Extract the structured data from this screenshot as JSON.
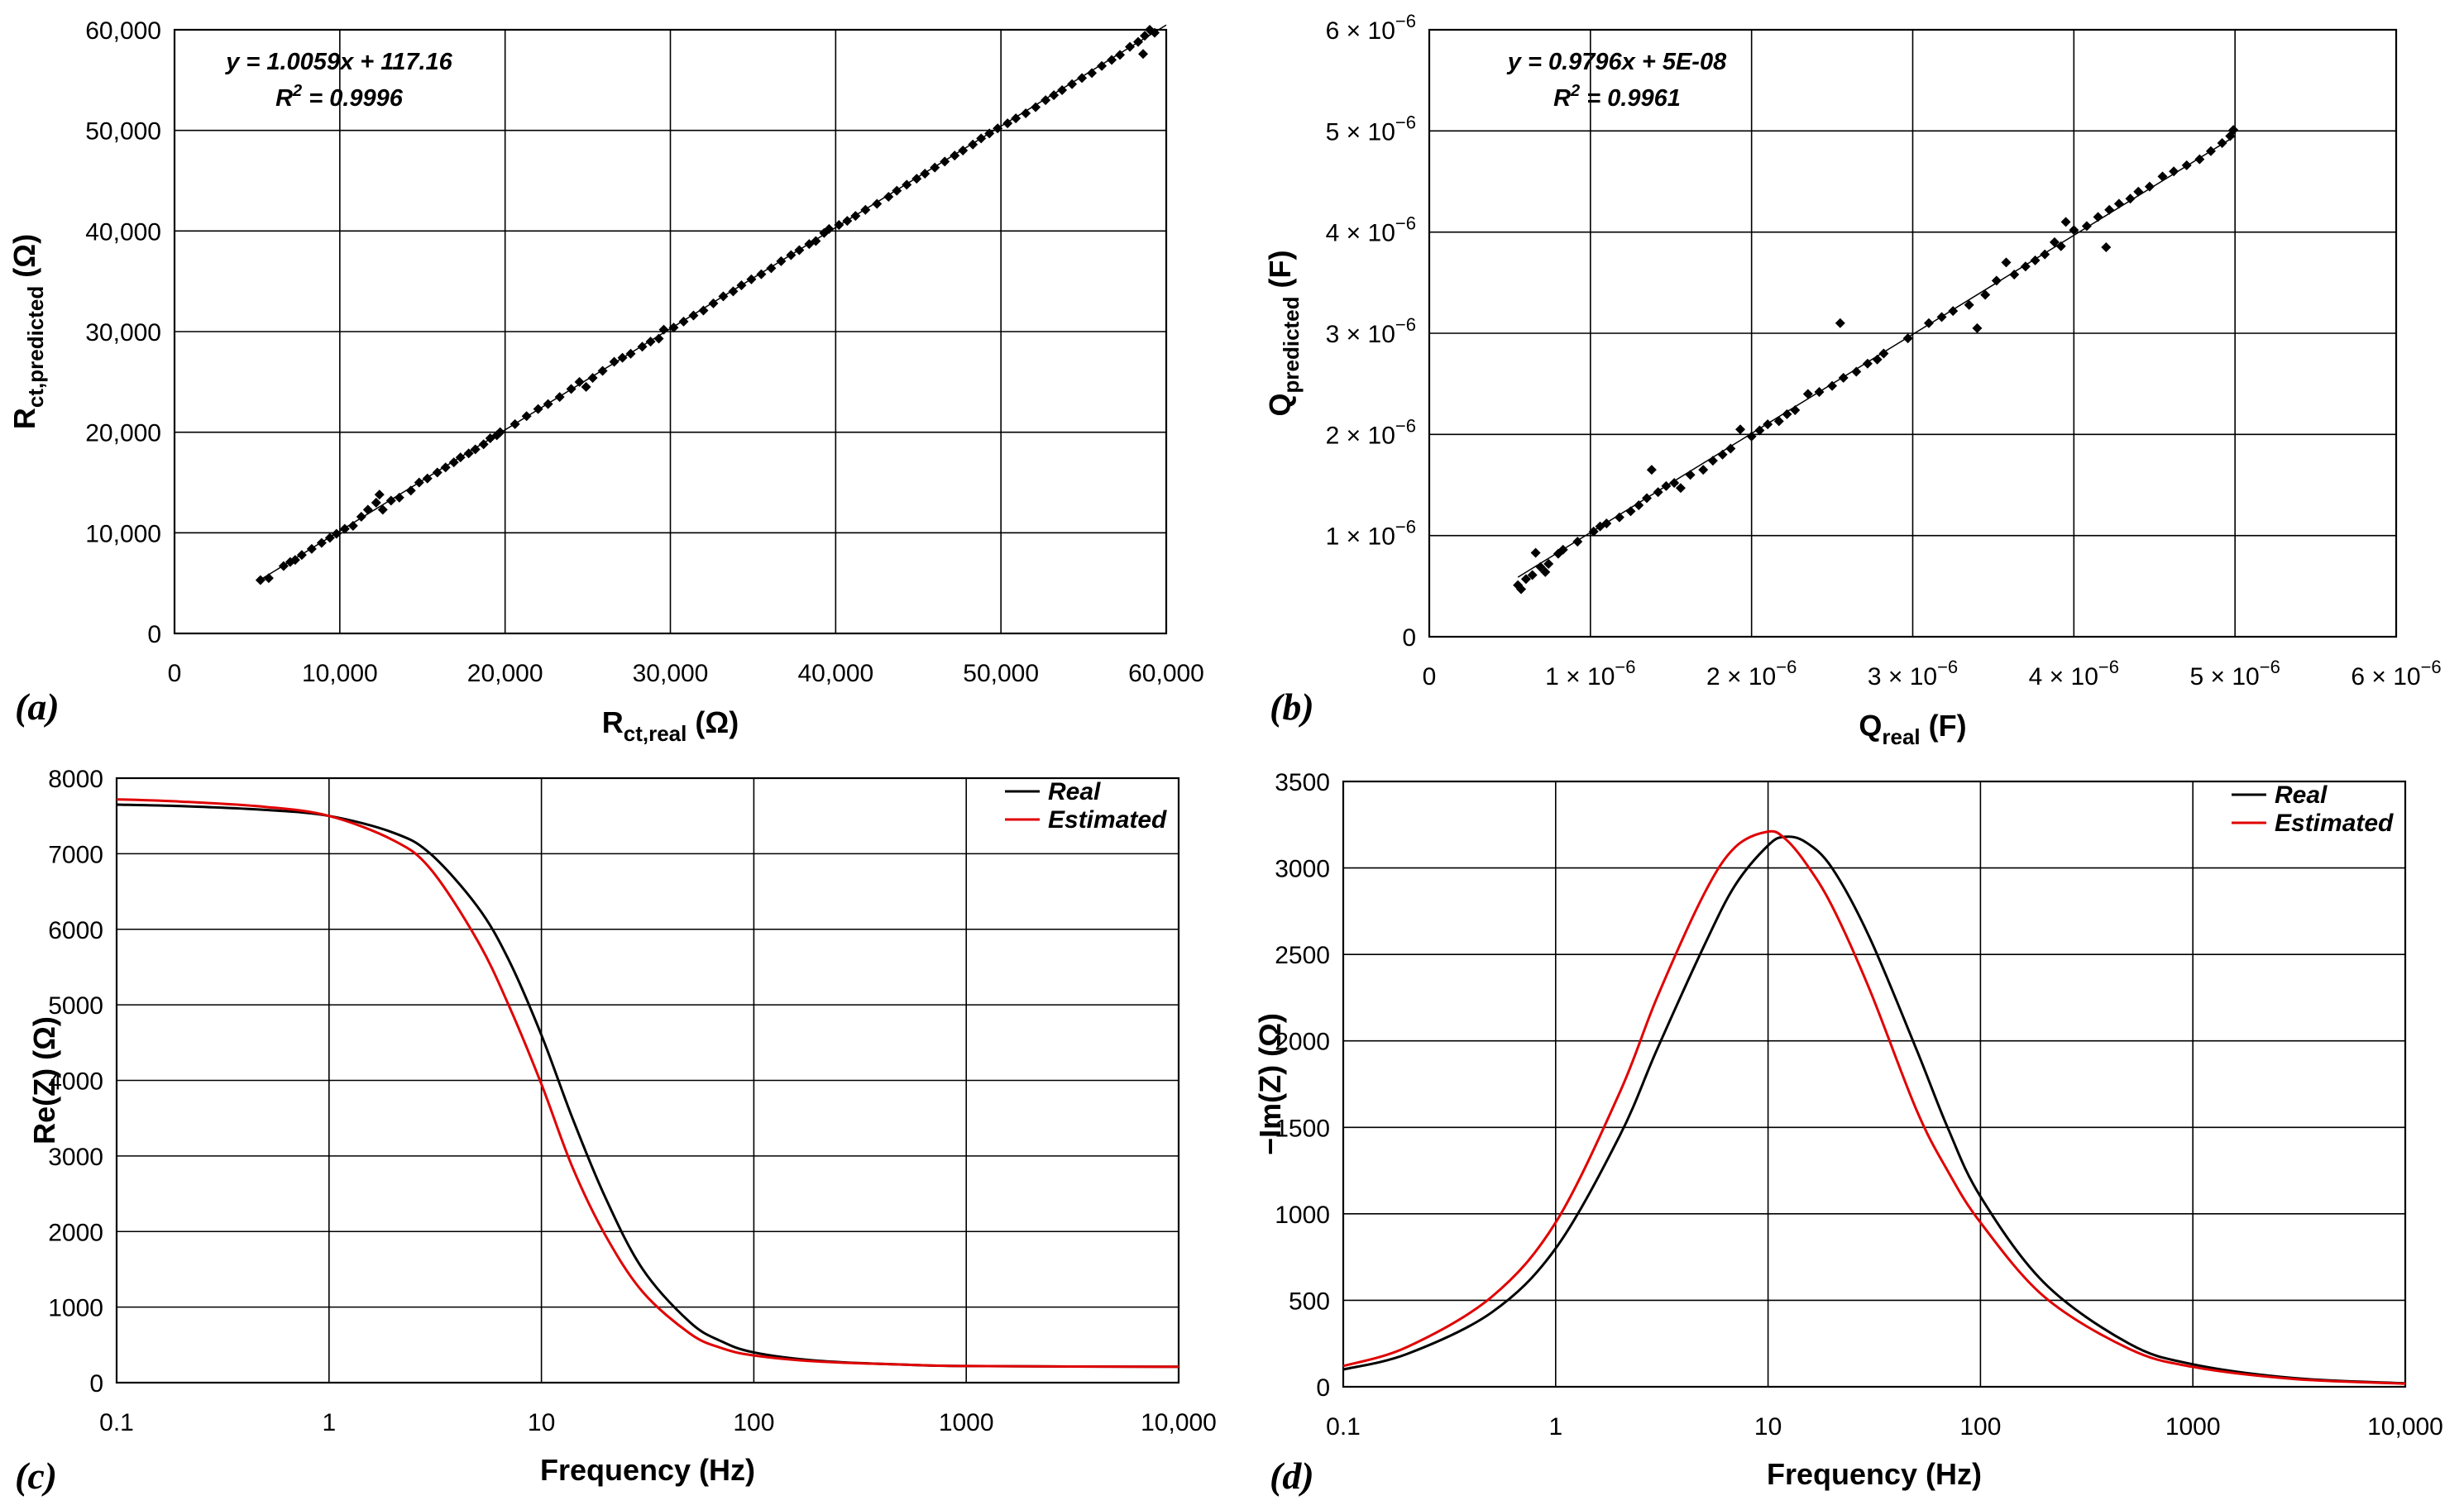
{
  "chart_data": [
    {
      "id": "a",
      "panel_label": "(a)",
      "type": "scatter",
      "xlabel": "R",
      "xlabel_sub": "ct,real",
      "xlabel_unit": " (Ω)",
      "ylabel": "R",
      "ylabel_sub": "ct,predicted",
      "ylabel_unit": " (Ω)",
      "xlim": [
        0,
        60000
      ],
      "ylim": [
        0,
        60000
      ],
      "xticks": [
        0,
        10000,
        20000,
        30000,
        40000,
        50000,
        60000
      ],
      "xtick_labels": [
        "0",
        "10,000",
        "20,000",
        "30,000",
        "40,000",
        "50,000",
        "60,000"
      ],
      "yticks": [
        0,
        10000,
        20000,
        30000,
        40000,
        50000,
        60000
      ],
      "ytick_labels": [
        "0",
        "10,000",
        "20,000",
        "30,000",
        "40,000",
        "50,000",
        "60,000"
      ],
      "grid": true,
      "equation": "y = 1.0059x + 117.16",
      "r2_label": "R",
      "r2_sup": "2",
      "r2_value": " = 0.9996",
      "trendline": {
        "slope": 1.0059,
        "intercept": 117.16,
        "x_range": [
          5000,
          60000
        ]
      },
      "points": [
        [
          5200,
          5300
        ],
        [
          5700,
          5500
        ],
        [
          6600,
          6700
        ],
        [
          7000,
          7100
        ],
        [
          7300,
          7300
        ],
        [
          7700,
          7800
        ],
        [
          8300,
          8400
        ],
        [
          8900,
          9000
        ],
        [
          9400,
          9500
        ],
        [
          9800,
          9900
        ],
        [
          10300,
          10400
        ],
        [
          10800,
          10700
        ],
        [
          11300,
          11600
        ],
        [
          11700,
          12300
        ],
        [
          12200,
          13000
        ],
        [
          12400,
          13800
        ],
        [
          12600,
          12300
        ],
        [
          13100,
          13200
        ],
        [
          13600,
          13500
        ],
        [
          14300,
          14200
        ],
        [
          14800,
          15000
        ],
        [
          15300,
          15400
        ],
        [
          15900,
          16000
        ],
        [
          16400,
          16500
        ],
        [
          16900,
          17000
        ],
        [
          17300,
          17500
        ],
        [
          17800,
          17900
        ],
        [
          18200,
          18300
        ],
        [
          18700,
          18800
        ],
        [
          19100,
          19400
        ],
        [
          19500,
          19700
        ],
        [
          19700,
          20000
        ],
        [
          20600,
          20800
        ],
        [
          21300,
          21600
        ],
        [
          22000,
          22300
        ],
        [
          22600,
          22800
        ],
        [
          23300,
          23500
        ],
        [
          24000,
          24300
        ],
        [
          24500,
          25000
        ],
        [
          24900,
          24500
        ],
        [
          25300,
          25400
        ],
        [
          25900,
          26100
        ],
        [
          26600,
          27000
        ],
        [
          27100,
          27400
        ],
        [
          27600,
          27800
        ],
        [
          28300,
          28500
        ],
        [
          28800,
          29000
        ],
        [
          29300,
          29300
        ],
        [
          29600,
          30200
        ],
        [
          30200,
          30400
        ],
        [
          30800,
          31000
        ],
        [
          31400,
          31600
        ],
        [
          32000,
          32100
        ],
        [
          32600,
          32800
        ],
        [
          33200,
          33500
        ],
        [
          33800,
          34000
        ],
        [
          34300,
          34600
        ],
        [
          34900,
          35200
        ],
        [
          35500,
          35700
        ],
        [
          36100,
          36300
        ],
        [
          36700,
          37000
        ],
        [
          37300,
          37600
        ],
        [
          37800,
          38100
        ],
        [
          38400,
          38700
        ],
        [
          38800,
          39000
        ],
        [
          39300,
          39800
        ],
        [
          39600,
          40200
        ],
        [
          40200,
          40600
        ],
        [
          40700,
          41000
        ],
        [
          41200,
          41500
        ],
        [
          41800,
          42100
        ],
        [
          42500,
          42700
        ],
        [
          43200,
          43400
        ],
        [
          43700,
          44000
        ],
        [
          44300,
          44600
        ],
        [
          44900,
          45200
        ],
        [
          45400,
          45700
        ],
        [
          46000,
          46300
        ],
        [
          46600,
          46900
        ],
        [
          47200,
          47500
        ],
        [
          47700,
          48000
        ],
        [
          48300,
          48600
        ],
        [
          48800,
          49200
        ],
        [
          49300,
          49700
        ],
        [
          49800,
          50200
        ],
        [
          50400,
          50700
        ],
        [
          50900,
          51200
        ],
        [
          51500,
          51700
        ],
        [
          52100,
          52300
        ],
        [
          52700,
          53000
        ],
        [
          53200,
          53500
        ],
        [
          53700,
          54000
        ],
        [
          54300,
          54600
        ],
        [
          54900,
          55200
        ],
        [
          55500,
          55700
        ],
        [
          56100,
          56400
        ],
        [
          56700,
          57000
        ],
        [
          57200,
          57500
        ],
        [
          57800,
          58300
        ],
        [
          58300,
          58800
        ],
        [
          58700,
          59400
        ],
        [
          59000,
          60000
        ],
        [
          59300,
          59700
        ],
        [
          58600,
          57600
        ]
      ]
    },
    {
      "id": "b",
      "panel_label": "(b)",
      "type": "scatter",
      "xlabel": "Q",
      "xlabel_sub": "real",
      "xlabel_unit": " (F)",
      "ylabel": "Q",
      "ylabel_sub": "predicted",
      "ylabel_unit": " (F)",
      "xlim": [
        0,
        6e-06
      ],
      "ylim": [
        0,
        6e-06
      ],
      "xticks": [
        0,
        1e-06,
        2e-06,
        3e-06,
        4e-06,
        5e-06,
        6e-06
      ],
      "xtick_labels": [
        "0",
        "1",
        "2",
        "3",
        "4",
        "5",
        "6"
      ],
      "yticks": [
        0,
        1e-06,
        2e-06,
        3e-06,
        4e-06,
        5e-06,
        6e-06
      ],
      "ytick_labels": [
        "0",
        "1",
        "2",
        "3",
        "4",
        "5",
        "6"
      ],
      "tick_multiplier": "× 10",
      "tick_exponent": "−6",
      "grid": true,
      "equation": "y = 0.9796x + 5E-08",
      "r2_label": "R",
      "r2_sup": "2",
      "r2_value": " = 0.9961",
      "trendline": {
        "slope": 0.9796,
        "intercept": 5e-08,
        "x_range": [
          5.5e-07,
          5e-06
        ]
      },
      "points": [
        [
          5.5e-07,
          5.1e-07
        ],
        [
          5.7e-07,
          4.7e-07
        ],
        [
          6e-07,
          5.7e-07
        ],
        [
          6.4e-07,
          6.1e-07
        ],
        [
          6.6e-07,
          8.3e-07
        ],
        [
          6.9e-07,
          6.9e-07
        ],
        [
          7.2e-07,
          6.4e-07
        ],
        [
          7.4e-07,
          7.2e-07
        ],
        [
          8e-07,
          8.2e-07
        ],
        [
          8.3e-07,
          8.6e-07
        ],
        [
          9.2e-07,
          9.4e-07
        ],
        [
          1.02e-06,
          1.04e-06
        ],
        [
          1.06e-06,
          1.09e-06
        ],
        [
          1.1e-06,
          1.12e-06
        ],
        [
          1.18e-06,
          1.18e-06
        ],
        [
          1.25e-06,
          1.24e-06
        ],
        [
          1.3e-06,
          1.3e-06
        ],
        [
          1.35e-06,
          1.37e-06
        ],
        [
          1.38e-06,
          1.65e-06
        ],
        [
          1.42e-06,
          1.43e-06
        ],
        [
          1.47e-06,
          1.49e-06
        ],
        [
          1.52e-06,
          1.52e-06
        ],
        [
          1.56e-06,
          1.47e-06
        ],
        [
          1.62e-06,
          1.6e-06
        ],
        [
          1.7e-06,
          1.65e-06
        ],
        [
          1.76e-06,
          1.74e-06
        ],
        [
          1.82e-06,
          1.8e-06
        ],
        [
          1.87e-06,
          1.86e-06
        ],
        [
          1.93e-06,
          2.05e-06
        ],
        [
          2e-06,
          1.98e-06
        ],
        [
          2.05e-06,
          2.04e-06
        ],
        [
          2.1e-06,
          2.1e-06
        ],
        [
          2.17e-06,
          2.13e-06
        ],
        [
          2.22e-06,
          2.2e-06
        ],
        [
          2.27e-06,
          2.24e-06
        ],
        [
          2.35e-06,
          2.4e-06
        ],
        [
          2.42e-06,
          2.42e-06
        ],
        [
          2.5e-06,
          2.48e-06
        ],
        [
          2.55e-06,
          3.1e-06
        ],
        [
          2.57e-06,
          2.56e-06
        ],
        [
          2.65e-06,
          2.62e-06
        ],
        [
          2.72e-06,
          2.7e-06
        ],
        [
          2.78e-06,
          2.74e-06
        ],
        [
          2.82e-06,
          2.8e-06
        ],
        [
          2.97e-06,
          2.95e-06
        ],
        [
          3.1e-06,
          3.1e-06
        ],
        [
          3.18e-06,
          3.16e-06
        ],
        [
          3.25e-06,
          3.22e-06
        ],
        [
          3.35e-06,
          3.28e-06
        ],
        [
          3.4e-06,
          3.05e-06
        ],
        [
          3.45e-06,
          3.38e-06
        ],
        [
          3.52e-06,
          3.52e-06
        ],
        [
          3.58e-06,
          3.7e-06
        ],
        [
          3.63e-06,
          3.58e-06
        ],
        [
          3.7e-06,
          3.66e-06
        ],
        [
          3.76e-06,
          3.72e-06
        ],
        [
          3.82e-06,
          3.78e-06
        ],
        [
          3.88e-06,
          3.9e-06
        ],
        [
          3.92e-06,
          3.86e-06
        ],
        [
          3.95e-06,
          4.1e-06
        ],
        [
          4e-06,
          4.02e-06
        ],
        [
          4.08e-06,
          4.06e-06
        ],
        [
          4.15e-06,
          4.15e-06
        ],
        [
          4.2e-06,
          3.85e-06
        ],
        [
          4.22e-06,
          4.22e-06
        ],
        [
          4.28e-06,
          4.28e-06
        ],
        [
          4.35e-06,
          4.33e-06
        ],
        [
          4.4e-06,
          4.4e-06
        ],
        [
          4.47e-06,
          4.45e-06
        ],
        [
          4.55e-06,
          4.55e-06
        ],
        [
          4.62e-06,
          4.6e-06
        ],
        [
          4.7e-06,
          4.66e-06
        ],
        [
          4.78e-06,
          4.72e-06
        ],
        [
          4.85e-06,
          4.8e-06
        ],
        [
          4.92e-06,
          4.88e-06
        ],
        [
          4.97e-06,
          4.95e-06
        ],
        [
          4.99e-06,
          5.01e-06
        ]
      ]
    },
    {
      "id": "c",
      "panel_label": "(c)",
      "type": "line",
      "xscale": "log",
      "xlabel": "Frequency (Hz)",
      "ylabel": "Re(Z) (Ω)",
      "xlim": [
        0.1,
        10000
      ],
      "ylim": [
        0,
        8000
      ],
      "xticks": [
        0.1,
        1,
        10,
        100,
        1000,
        10000
      ],
      "xtick_labels": [
        "0.1",
        "1",
        "10",
        "100",
        "1000",
        "10,000"
      ],
      "yticks": [
        0,
        1000,
        2000,
        3000,
        4000,
        5000,
        6000,
        7000,
        8000
      ],
      "ytick_labels": [
        "0",
        "1000",
        "2000",
        "3000",
        "4000",
        "5000",
        "6000",
        "7000",
        "8000"
      ],
      "grid": true,
      "legend_position": "top-right",
      "series": [
        {
          "name": "Real",
          "color": "#000000",
          "x": [
            0.1,
            0.2,
            0.5,
            1,
            2,
            3,
            5,
            7,
            10,
            14,
            20,
            30,
            50,
            70,
            100,
            200,
            500,
            1000,
            10000
          ],
          "y": [
            7650,
            7630,
            7580,
            7500,
            7280,
            7000,
            6300,
            5600,
            4600,
            3500,
            2450,
            1500,
            800,
            550,
            400,
            290,
            240,
            220,
            210
          ]
        },
        {
          "name": "Estimated",
          "color": "#e00000",
          "x": [
            0.1,
            0.2,
            0.5,
            1,
            2,
            3,
            5,
            7,
            10,
            14,
            20,
            30,
            50,
            70,
            100,
            200,
            500,
            1000,
            10000
          ],
          "y": [
            7720,
            7690,
            7620,
            7500,
            7180,
            6800,
            5850,
            5000,
            3950,
            2850,
            1950,
            1200,
            650,
            460,
            360,
            280,
            240,
            220,
            210
          ]
        }
      ]
    },
    {
      "id": "d",
      "panel_label": "(d)",
      "type": "line",
      "xscale": "log",
      "xlabel": "Frequency (Hz)",
      "ylabel": "−Im(Z) (Ω)",
      "xlim": [
        0.1,
        10000
      ],
      "ylim": [
        0,
        3500
      ],
      "xticks": [
        0.1,
        1,
        10,
        100,
        1000,
        10000
      ],
      "xtick_labels": [
        "0.1",
        "1",
        "10",
        "100",
        "1000",
        "10,000"
      ],
      "yticks": [
        0,
        500,
        1000,
        1500,
        2000,
        2500,
        3000,
        3500
      ],
      "ytick_labels": [
        "0",
        "500",
        "1000",
        "1500",
        "2000",
        "2500",
        "3000",
        "3500"
      ],
      "grid": true,
      "legend_position": "top-right",
      "series": [
        {
          "name": "Real",
          "color": "#000000",
          "x": [
            0.1,
            0.2,
            0.5,
            1,
            2,
            3,
            5,
            7,
            10,
            12,
            15,
            20,
            30,
            50,
            70,
            100,
            200,
            500,
            1000,
            3000,
            10000
          ],
          "y": [
            100,
            190,
            430,
            800,
            1450,
            1950,
            2550,
            2900,
            3130,
            3180,
            3150,
            3000,
            2600,
            1950,
            1500,
            1100,
            600,
            250,
            130,
            50,
            20
          ]
        },
        {
          "name": "Estimated",
          "color": "#e00000",
          "x": [
            0.1,
            0.2,
            0.5,
            1,
            2,
            3,
            5,
            7,
            10,
            12,
            15,
            20,
            30,
            50,
            70,
            100,
            200,
            500,
            1000,
            3000,
            10000
          ],
          "y": [
            120,
            230,
            520,
            950,
            1700,
            2250,
            2850,
            3120,
            3210,
            3170,
            3030,
            2780,
            2300,
            1600,
            1250,
            950,
            520,
            220,
            115,
            45,
            18
          ]
        }
      ]
    }
  ]
}
